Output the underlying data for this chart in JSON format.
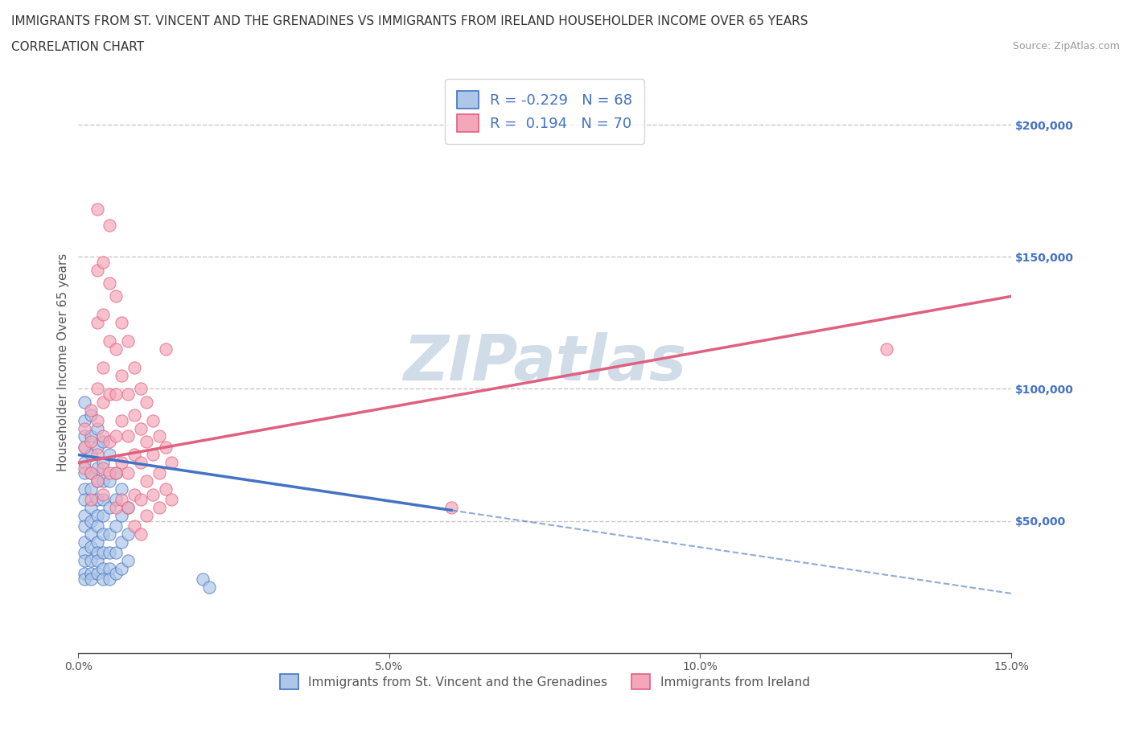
{
  "title_line1": "IMMIGRANTS FROM ST. VINCENT AND THE GRENADINES VS IMMIGRANTS FROM IRELAND HOUSEHOLDER INCOME OVER 65 YEARS",
  "title_line2": "CORRELATION CHART",
  "source": "Source: ZipAtlas.com",
  "ylabel": "Householder Income Over 65 years",
  "watermark": "ZIPatlas",
  "xlim": [
    0.0,
    0.15
  ],
  "ylim": [
    0,
    220000
  ],
  "xticks": [
    0.0,
    0.05,
    0.1,
    0.15
  ],
  "xtick_labels": [
    "0.0%",
    "5.0%",
    "10.0%",
    "15.0%"
  ],
  "yticks": [
    50000,
    100000,
    150000,
    200000
  ],
  "ytick_labels": [
    "$50,000",
    "$100,000",
    "$150,000",
    "$200,000"
  ],
  "legend_r_blue": "-0.229",
  "legend_n_blue": "68",
  "legend_r_pink": "0.194",
  "legend_n_pink": "70",
  "blue_color": "#aec6e8",
  "pink_color": "#f4a7b9",
  "blue_line_color": "#4472c4",
  "pink_line_color": "#e06080",
  "blue_scatter": [
    [
      0.001,
      95000
    ],
    [
      0.001,
      88000
    ],
    [
      0.001,
      82000
    ],
    [
      0.001,
      78000
    ],
    [
      0.001,
      72000
    ],
    [
      0.001,
      68000
    ],
    [
      0.001,
      62000
    ],
    [
      0.001,
      58000
    ],
    [
      0.001,
      52000
    ],
    [
      0.001,
      48000
    ],
    [
      0.001,
      42000
    ],
    [
      0.001,
      38000
    ],
    [
      0.001,
      35000
    ],
    [
      0.001,
      30000
    ],
    [
      0.001,
      28000
    ],
    [
      0.002,
      90000
    ],
    [
      0.002,
      82000
    ],
    [
      0.002,
      75000
    ],
    [
      0.002,
      68000
    ],
    [
      0.002,
      62000
    ],
    [
      0.002,
      55000
    ],
    [
      0.002,
      50000
    ],
    [
      0.002,
      45000
    ],
    [
      0.002,
      40000
    ],
    [
      0.002,
      35000
    ],
    [
      0.002,
      30000
    ],
    [
      0.002,
      28000
    ],
    [
      0.003,
      85000
    ],
    [
      0.003,
      78000
    ],
    [
      0.003,
      70000
    ],
    [
      0.003,
      65000
    ],
    [
      0.003,
      58000
    ],
    [
      0.003,
      52000
    ],
    [
      0.003,
      48000
    ],
    [
      0.003,
      42000
    ],
    [
      0.003,
      38000
    ],
    [
      0.003,
      35000
    ],
    [
      0.003,
      30000
    ],
    [
      0.004,
      80000
    ],
    [
      0.004,
      72000
    ],
    [
      0.004,
      65000
    ],
    [
      0.004,
      58000
    ],
    [
      0.004,
      52000
    ],
    [
      0.004,
      45000
    ],
    [
      0.004,
      38000
    ],
    [
      0.004,
      32000
    ],
    [
      0.004,
      28000
    ],
    [
      0.005,
      75000
    ],
    [
      0.005,
      65000
    ],
    [
      0.005,
      55000
    ],
    [
      0.005,
      45000
    ],
    [
      0.005,
      38000
    ],
    [
      0.005,
      32000
    ],
    [
      0.005,
      28000
    ],
    [
      0.006,
      68000
    ],
    [
      0.006,
      58000
    ],
    [
      0.006,
      48000
    ],
    [
      0.006,
      38000
    ],
    [
      0.006,
      30000
    ],
    [
      0.007,
      62000
    ],
    [
      0.007,
      52000
    ],
    [
      0.007,
      42000
    ],
    [
      0.007,
      32000
    ],
    [
      0.008,
      55000
    ],
    [
      0.008,
      45000
    ],
    [
      0.008,
      35000
    ],
    [
      0.02,
      28000
    ],
    [
      0.021,
      25000
    ]
  ],
  "pink_scatter": [
    [
      0.001,
      85000
    ],
    [
      0.001,
      78000
    ],
    [
      0.001,
      70000
    ],
    [
      0.002,
      92000
    ],
    [
      0.002,
      80000
    ],
    [
      0.002,
      68000
    ],
    [
      0.002,
      58000
    ],
    [
      0.003,
      168000
    ],
    [
      0.003,
      145000
    ],
    [
      0.003,
      125000
    ],
    [
      0.003,
      100000
    ],
    [
      0.003,
      88000
    ],
    [
      0.003,
      75000
    ],
    [
      0.003,
      65000
    ],
    [
      0.004,
      148000
    ],
    [
      0.004,
      128000
    ],
    [
      0.004,
      108000
    ],
    [
      0.004,
      95000
    ],
    [
      0.004,
      82000
    ],
    [
      0.004,
      70000
    ],
    [
      0.004,
      60000
    ],
    [
      0.005,
      162000
    ],
    [
      0.005,
      140000
    ],
    [
      0.005,
      118000
    ],
    [
      0.005,
      98000
    ],
    [
      0.005,
      80000
    ],
    [
      0.005,
      68000
    ],
    [
      0.006,
      135000
    ],
    [
      0.006,
      115000
    ],
    [
      0.006,
      98000
    ],
    [
      0.006,
      82000
    ],
    [
      0.006,
      68000
    ],
    [
      0.006,
      55000
    ],
    [
      0.007,
      125000
    ],
    [
      0.007,
      105000
    ],
    [
      0.007,
      88000
    ],
    [
      0.007,
      72000
    ],
    [
      0.007,
      58000
    ],
    [
      0.008,
      118000
    ],
    [
      0.008,
      98000
    ],
    [
      0.008,
      82000
    ],
    [
      0.008,
      68000
    ],
    [
      0.008,
      55000
    ],
    [
      0.009,
      108000
    ],
    [
      0.009,
      90000
    ],
    [
      0.009,
      75000
    ],
    [
      0.009,
      60000
    ],
    [
      0.009,
      48000
    ],
    [
      0.01,
      100000
    ],
    [
      0.01,
      85000
    ],
    [
      0.01,
      72000
    ],
    [
      0.01,
      58000
    ],
    [
      0.01,
      45000
    ],
    [
      0.011,
      95000
    ],
    [
      0.011,
      80000
    ],
    [
      0.011,
      65000
    ],
    [
      0.011,
      52000
    ],
    [
      0.012,
      88000
    ],
    [
      0.012,
      75000
    ],
    [
      0.012,
      60000
    ],
    [
      0.013,
      82000
    ],
    [
      0.013,
      68000
    ],
    [
      0.013,
      55000
    ],
    [
      0.014,
      115000
    ],
    [
      0.014,
      78000
    ],
    [
      0.014,
      62000
    ],
    [
      0.015,
      72000
    ],
    [
      0.015,
      58000
    ],
    [
      0.06,
      55000
    ],
    [
      0.13,
      115000
    ]
  ],
  "bg_color": "#ffffff",
  "grid_color": "#c8c8c8",
  "title_color": "#333333",
  "axis_color": "#555555",
  "watermark_color": "#d0dce8",
  "title_fontsize": 11,
  "subtitle_fontsize": 11,
  "axis_label_fontsize": 11,
  "tick_fontsize": 10,
  "legend_fontsize": 13,
  "blue_line_intercept": 75000,
  "blue_line_slope": -350000,
  "pink_line_intercept": 72000,
  "pink_line_slope": 420000
}
